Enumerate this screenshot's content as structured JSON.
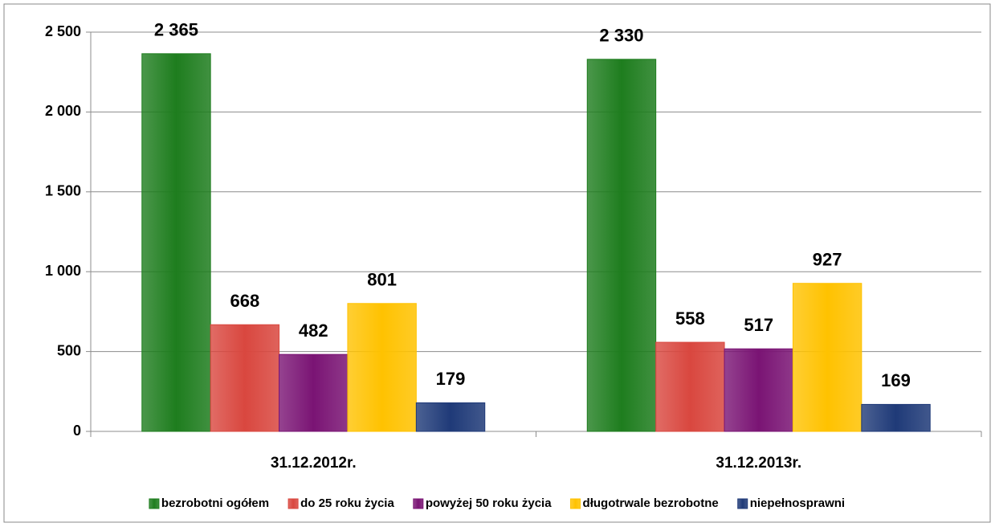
{
  "chart_data": {
    "type": "bar",
    "categories": [
      "31.12.2012r.",
      "31.12.2013r."
    ],
    "series": [
      {
        "name": "bezrobotni ogółem",
        "color": "#1e7d1e",
        "values": [
          2365,
          2330
        ],
        "value_labels": [
          "2 365",
          "2 330"
        ]
      },
      {
        "name": "do 25 roku życia",
        "color": "#d9473f",
        "values": [
          668,
          558
        ]
      },
      {
        "name": "powyżej 50 roku życia",
        "color": "#7a1474",
        "values": [
          482,
          517
        ]
      },
      {
        "name": "długotrwale bezrobotne",
        "color": "#ffc200",
        "values": [
          801,
          927
        ]
      },
      {
        "name": "niepełnosprawni",
        "color": "#1f3a78",
        "values": [
          179,
          169
        ]
      }
    ],
    "ylim": [
      0,
      2500
    ],
    "yticks": [
      0,
      500,
      {
        "value": 1000,
        "label": "1 000"
      },
      {
        "value": 1500,
        "label": "1 500"
      },
      {
        "value": 2000,
        "label": "2 000"
      },
      {
        "value": 2500,
        "label": "2 500"
      }
    ],
    "grid": true,
    "legend": "bottom"
  }
}
